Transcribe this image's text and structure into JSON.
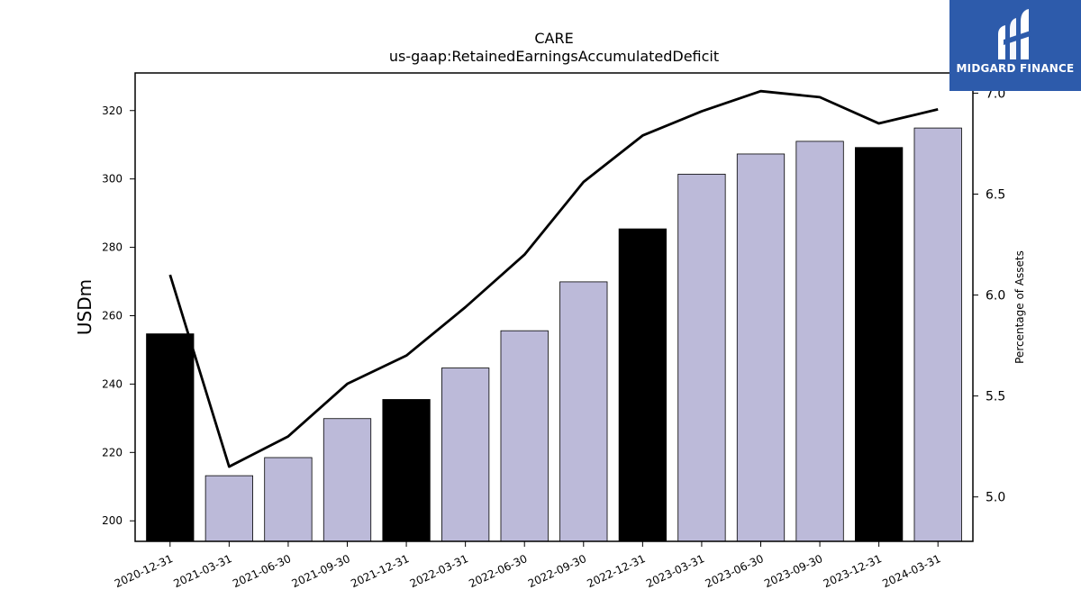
{
  "chart_data": {
    "type": "bar",
    "title": "CARE",
    "subtitle": "us-gaap:RetainedEarningsAccumulatedDeficit",
    "ylabel": "USDm",
    "y2label": "Percentage of Assets",
    "ylim": [
      194,
      331
    ],
    "y2lim": [
      4.78,
      7.1
    ],
    "yticks": [
      200,
      220,
      240,
      260,
      280,
      300,
      320
    ],
    "y2ticks": [
      5.0,
      5.5,
      6.0,
      6.5,
      7.0
    ],
    "categories": [
      "2020-12-31",
      "2021-03-31",
      "2021-06-30",
      "2021-09-30",
      "2021-12-31",
      "2022-03-31",
      "2022-06-30",
      "2022-09-30",
      "2022-12-31",
      "2023-03-31",
      "2023-06-30",
      "2023-09-30",
      "2023-12-31",
      "2024-03-31"
    ],
    "series": [
      {
        "type": "bar",
        "values": [
          254.7,
          213.2,
          218.5,
          229.9,
          235.5,
          244.7,
          255.6,
          269.9,
          285.4,
          301.4,
          307.3,
          311.0,
          309.2,
          314.9
        ],
        "colors": [
          "#000000",
          "#bcbad9",
          "#bcbad9",
          "#bcbad9",
          "#000000",
          "#bcbad9",
          "#bcbad9",
          "#bcbad9",
          "#000000",
          "#bcbad9",
          "#bcbad9",
          "#bcbad9",
          "#000000",
          "#bcbad9"
        ]
      },
      {
        "type": "line",
        "axis": "right",
        "color": "#000000",
        "values": [
          6.1,
          5.15,
          5.3,
          5.56,
          5.7,
          5.94,
          6.2,
          6.56,
          6.79,
          6.91,
          7.01,
          6.98,
          6.85,
          6.92
        ]
      }
    ],
    "grid": false
  },
  "logo": {
    "text": "MIDGARD FINANCE",
    "background": "#2d5bab"
  }
}
